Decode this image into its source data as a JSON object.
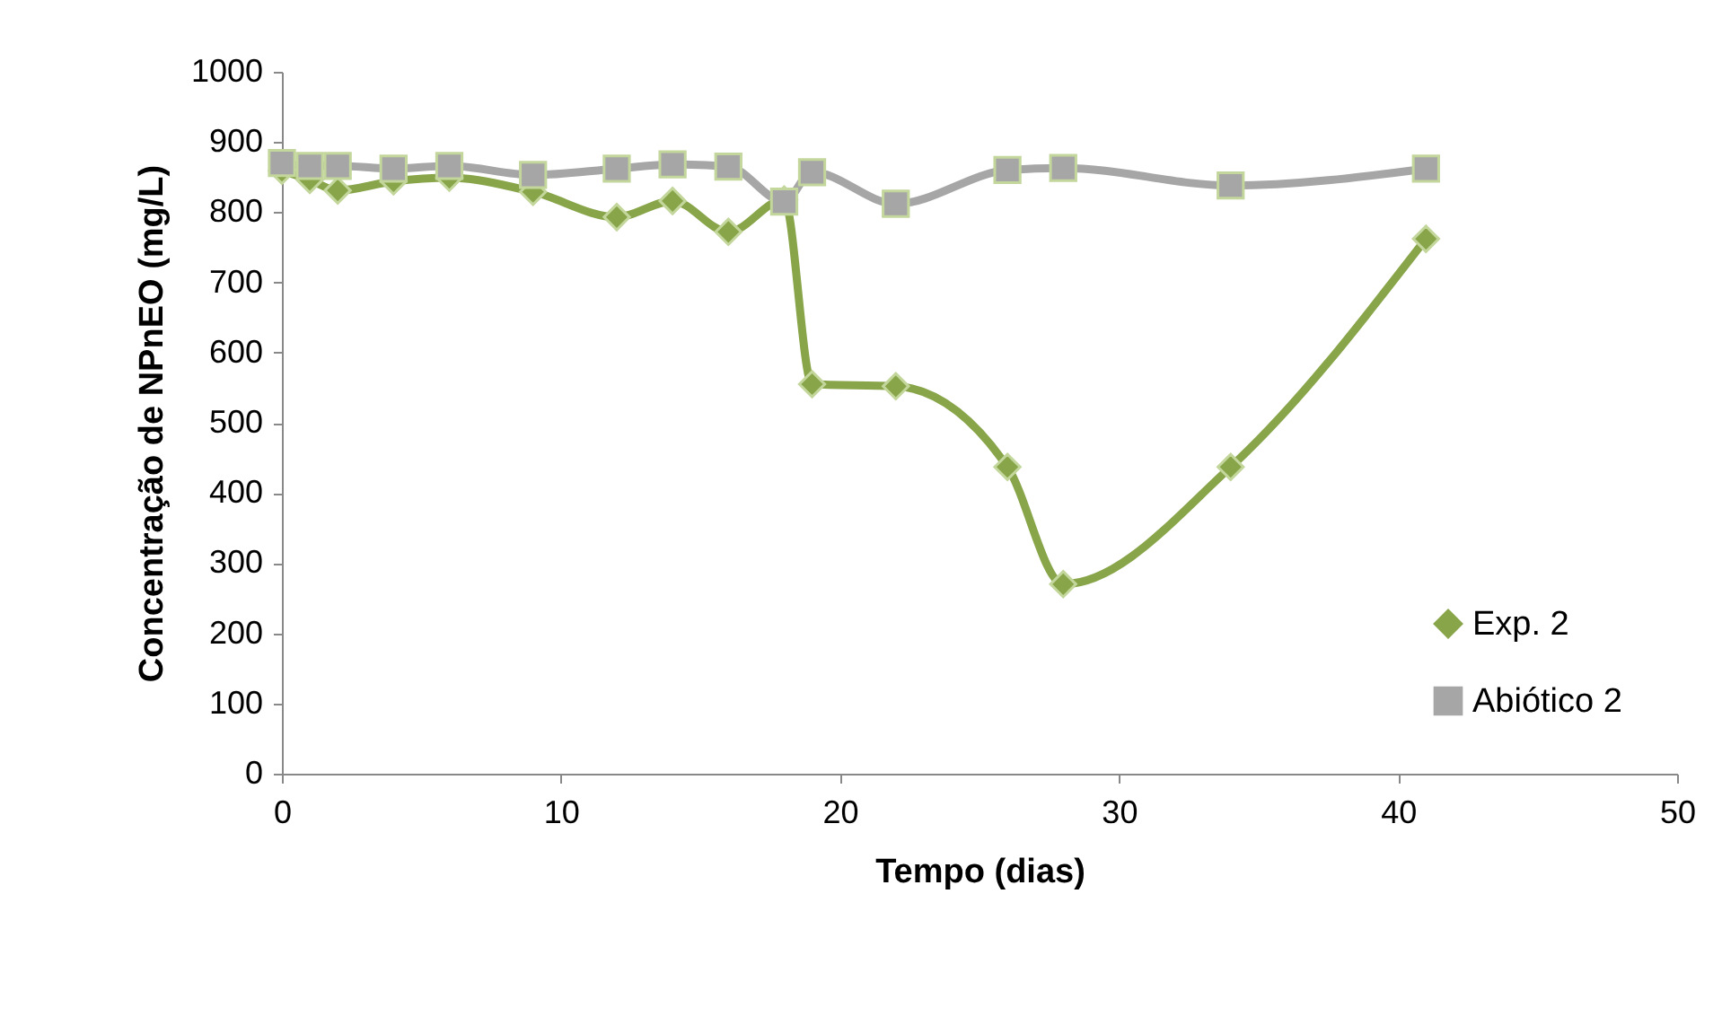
{
  "chart_data": {
    "type": "line",
    "xlabel": "Tempo (dias)",
    "ylabel": "Concentração de NPnEO (mg/L)",
    "xlim": [
      0,
      50
    ],
    "xticks": [
      0,
      10,
      20,
      30,
      40,
      50
    ],
    "ylim": [
      0,
      1000
    ],
    "yticks": [
      0,
      100,
      200,
      300,
      400,
      500,
      600,
      700,
      800,
      900,
      1000
    ],
    "x": [
      0,
      1,
      2,
      4,
      6,
      9,
      12,
      14,
      16,
      18,
      19,
      22,
      26,
      28,
      34,
      41
    ],
    "series": [
      {
        "name": "Exp. 2",
        "color": "#88a54a",
        "marker": "diamond",
        "values": [
          859,
          846,
          831,
          844,
          849,
          829,
          793,
          816,
          772,
          818,
          555,
          552,
          437,
          270,
          437,
          762
        ]
      },
      {
        "name": "Abiótico 2",
        "color": "#a6a6a6",
        "marker": "square",
        "values": [
          870,
          866,
          866,
          862,
          866,
          853,
          862,
          868,
          865,
          815,
          857,
          812,
          860,
          863,
          838,
          862
        ]
      }
    ],
    "legend": "right",
    "grid": false
  }
}
